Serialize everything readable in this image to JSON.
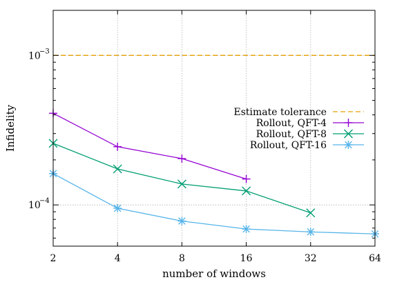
{
  "chart_data": {
    "type": "line",
    "xlabel": "number of windows",
    "ylabel": "Infidelity",
    "x_scale": "log2",
    "y_scale": "log10",
    "xlim": [
      2,
      64
    ],
    "ylim": [
      5.3e-05,
      0.002
    ],
    "x_ticks": [
      {
        "value": 2,
        "label": "2"
      },
      {
        "value": 4,
        "label": "4"
      },
      {
        "value": 8,
        "label": "8"
      },
      {
        "value": 16,
        "label": "16"
      },
      {
        "value": 32,
        "label": "32"
      },
      {
        "value": 64,
        "label": "64"
      }
    ],
    "y_ticks": [
      {
        "value": 0.001,
        "label": "10",
        "exponent": "−3"
      },
      {
        "value": 0.0001,
        "label": "10",
        "exponent": "−4"
      }
    ],
    "grid": true,
    "legend_position": "right",
    "series": [
      {
        "name": "Estimate tolerance",
        "style": "dashed",
        "marker": "none",
        "color": "#e69f00",
        "x": [
          2,
          64
        ],
        "y": [
          0.001,
          0.001
        ]
      },
      {
        "name": "Rollout, QFT-4",
        "style": "solid",
        "marker": "plus",
        "color": "#9400d3",
        "x": [
          2,
          4,
          8,
          16
        ],
        "y": [
          0.00041,
          0.000245,
          0.000204,
          0.000149
        ]
      },
      {
        "name": "Rollout, QFT-8",
        "style": "solid",
        "marker": "cross",
        "color": "#009e73",
        "x": [
          2,
          4,
          8,
          16,
          32
        ],
        "y": [
          0.000258,
          0.000174,
          0.000138,
          0.000124,
          8.85e-05
        ]
      },
      {
        "name": "Rollout, QFT-16",
        "style": "solid",
        "marker": "star",
        "color": "#56b4e9",
        "x": [
          2,
          4,
          8,
          16,
          32,
          64
        ],
        "y": [
          0.000162,
          9.5e-05,
          7.8e-05,
          6.9e-05,
          6.6e-05,
          6.4e-05
        ]
      }
    ]
  }
}
